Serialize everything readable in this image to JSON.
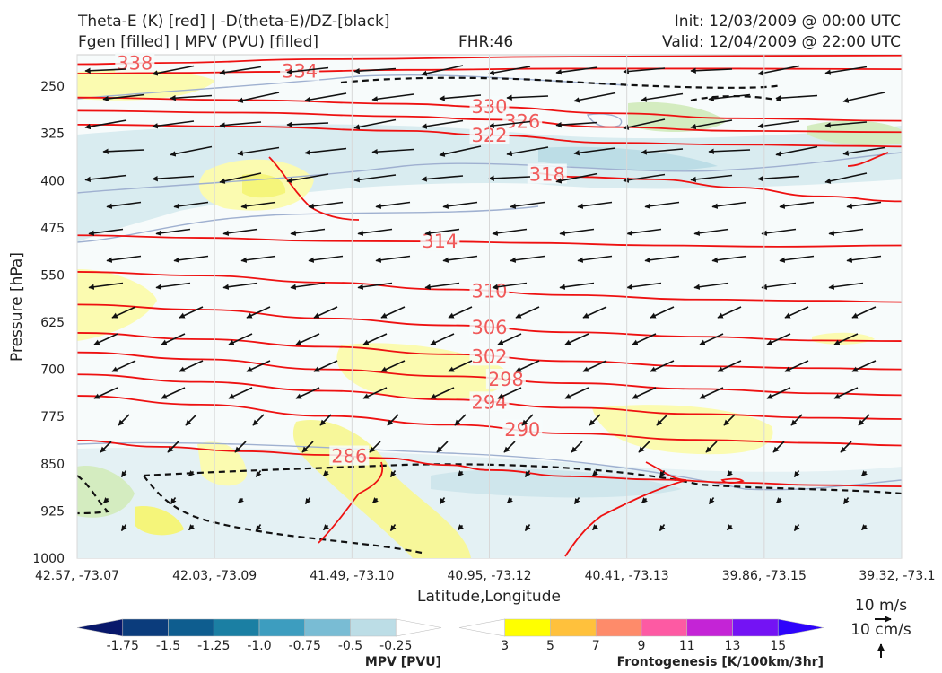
{
  "header": {
    "title_line1": "Theta-E (K) [red] | -D(theta-E)/DZ-[black]",
    "title_line2": "Fgen [filled] | MPV (PVU) [filled]",
    "fhr": "FHR:46",
    "init": "Init: 12/03/2009 @ 00:00 UTC",
    "valid": "Valid: 12/04/2009 @ 22:00 UTC"
  },
  "chart_data": {
    "type": "cross-section",
    "xlabel": "Latitude,Longitude",
    "ylabel": "Pressure [hPa]",
    "ylim": [
      1000,
      200
    ],
    "y_ticks": [
      250,
      325,
      400,
      475,
      550,
      625,
      700,
      775,
      850,
      925,
      1000
    ],
    "x_ticks": [
      "42.57, -73.07",
      "42.03, -73.09",
      "41.49, -73.10",
      "40.95, -73.12",
      "40.41, -73.13",
      "39.86, -73.15",
      "39.32, -73.1"
    ],
    "theta_e_contours": [
      {
        "label": "338",
        "points": [
          [
            0,
            215
          ],
          [
            0.1,
            213
          ],
          [
            0.3,
            207
          ],
          [
            0.6,
            203
          ],
          [
            1,
            201
          ]
        ]
      },
      {
        "label": "334",
        "points": [
          [
            0,
            230
          ],
          [
            0.1,
            229
          ],
          [
            0.25,
            227
          ],
          [
            0.4,
            224
          ],
          [
            0.6,
            222
          ],
          [
            0.8,
            222
          ],
          [
            1,
            223
          ]
        ]
      },
      {
        "label": "330",
        "points": [
          [
            0,
            268
          ],
          [
            0.2,
            272
          ],
          [
            0.4,
            278
          ],
          [
            0.5,
            283
          ],
          [
            0.65,
            293
          ],
          [
            0.8,
            301
          ],
          [
            1,
            305
          ]
        ]
      },
      {
        "label": "326",
        "points": [
          [
            0,
            289
          ],
          [
            0.2,
            292
          ],
          [
            0.4,
            298
          ],
          [
            0.5,
            303
          ],
          [
            0.65,
            315
          ],
          [
            0.8,
            321
          ],
          [
            1,
            323
          ]
        ]
      },
      {
        "label": "322",
        "points": [
          [
            0,
            311
          ],
          [
            0.2,
            314
          ],
          [
            0.4,
            321
          ],
          [
            0.5,
            328
          ],
          [
            0.65,
            340
          ],
          [
            0.8,
            343
          ],
          [
            0.95,
            345
          ],
          [
            1,
            346
          ]
        ]
      },
      {
        "label": "318",
        "points": [
          [
            0.55,
            388
          ],
          [
            0.6,
            394
          ],
          [
            0.7,
            398
          ],
          [
            0.8,
            411
          ],
          [
            0.9,
            425
          ],
          [
            1,
            433
          ]
        ]
      },
      {
        "label": "314",
        "points": [
          [
            0,
            487
          ],
          [
            0.15,
            491
          ],
          [
            0.3,
            496
          ],
          [
            0.45,
            497
          ],
          [
            0.55,
            499
          ],
          [
            0.7,
            503
          ],
          [
            0.85,
            505
          ],
          [
            1,
            503
          ]
        ]
      },
      {
        "label": "310",
        "points": [
          [
            0,
            545
          ],
          [
            0.15,
            551
          ],
          [
            0.3,
            562
          ],
          [
            0.45,
            573
          ],
          [
            0.6,
            582
          ],
          [
            0.75,
            589
          ],
          [
            0.9,
            591
          ],
          [
            1,
            593
          ]
        ]
      },
      {
        "label": "306",
        "points": [
          [
            0,
            597
          ],
          [
            0.15,
            605
          ],
          [
            0.3,
            619
          ],
          [
            0.45,
            630
          ],
          [
            0.6,
            641
          ],
          [
            0.75,
            648
          ],
          [
            0.9,
            654
          ],
          [
            1,
            655
          ]
        ]
      },
      {
        "label": "302",
        "points": [
          [
            0,
            642
          ],
          [
            0.15,
            652
          ],
          [
            0.3,
            664
          ],
          [
            0.45,
            676
          ],
          [
            0.6,
            687
          ],
          [
            0.75,
            695
          ],
          [
            0.9,
            698
          ],
          [
            1,
            700
          ]
        ]
      },
      {
        "label": "298",
        "points": [
          [
            0,
            673
          ],
          [
            0.15,
            684
          ],
          [
            0.3,
            700
          ],
          [
            0.45,
            711
          ],
          [
            0.6,
            722
          ],
          [
            0.75,
            731
          ],
          [
            0.9,
            738
          ],
          [
            1,
            741
          ]
        ]
      },
      {
        "label": "294",
        "points": [
          [
            0,
            708
          ],
          [
            0.15,
            720
          ],
          [
            0.3,
            734
          ],
          [
            0.45,
            748
          ],
          [
            0.6,
            761
          ],
          [
            0.75,
            771
          ],
          [
            0.9,
            777
          ],
          [
            1,
            779
          ]
        ]
      },
      {
        "label": "290",
        "points": [
          [
            0,
            742
          ],
          [
            0.15,
            756
          ],
          [
            0.3,
            774
          ],
          [
            0.45,
            788
          ],
          [
            0.6,
            802
          ],
          [
            0.75,
            812
          ],
          [
            0.9,
            817
          ],
          [
            1,
            821
          ]
        ]
      },
      {
        "label": "286",
        "points": [
          [
            0,
            813
          ],
          [
            0.1,
            823
          ],
          [
            0.2,
            830
          ],
          [
            0.3,
            836
          ],
          [
            0.37,
            841
          ],
          [
            0.45,
            852
          ],
          [
            0.5,
            860
          ],
          [
            0.6,
            870
          ],
          [
            0.7,
            875
          ],
          [
            0.8,
            880
          ],
          [
            0.9,
            884
          ],
          [
            1,
            886
          ]
        ]
      }
    ],
    "mpv_colorbar": {
      "label": "MPV [PVU]",
      "ticks": [
        "-1.75",
        "-1.5",
        "-1.25",
        "-1.0",
        "-0.75",
        "-0.5",
        "-0.25"
      ],
      "colors": [
        "#08186b",
        "#0b3c7c",
        "#0e5d8f",
        "#1b7fa3",
        "#3d9dbf",
        "#79bcd4",
        "#bcdde6",
        "#ffffff"
      ]
    },
    "fgen_colorbar": {
      "label": "Frontogenesis [K/100km/3hr]",
      "ticks": [
        "3",
        "5",
        "7",
        "9",
        "11",
        "13",
        "15"
      ],
      "colors": [
        "#ffffff",
        "#ffff00",
        "#ffc13c",
        "#fe8b6a",
        "#fd5aa3",
        "#c424d6",
        "#7413f4",
        "#2e04fb"
      ]
    },
    "reference_vectors": {
      "horizontal": "10 m/s",
      "vertical": "10 cm/s"
    }
  }
}
